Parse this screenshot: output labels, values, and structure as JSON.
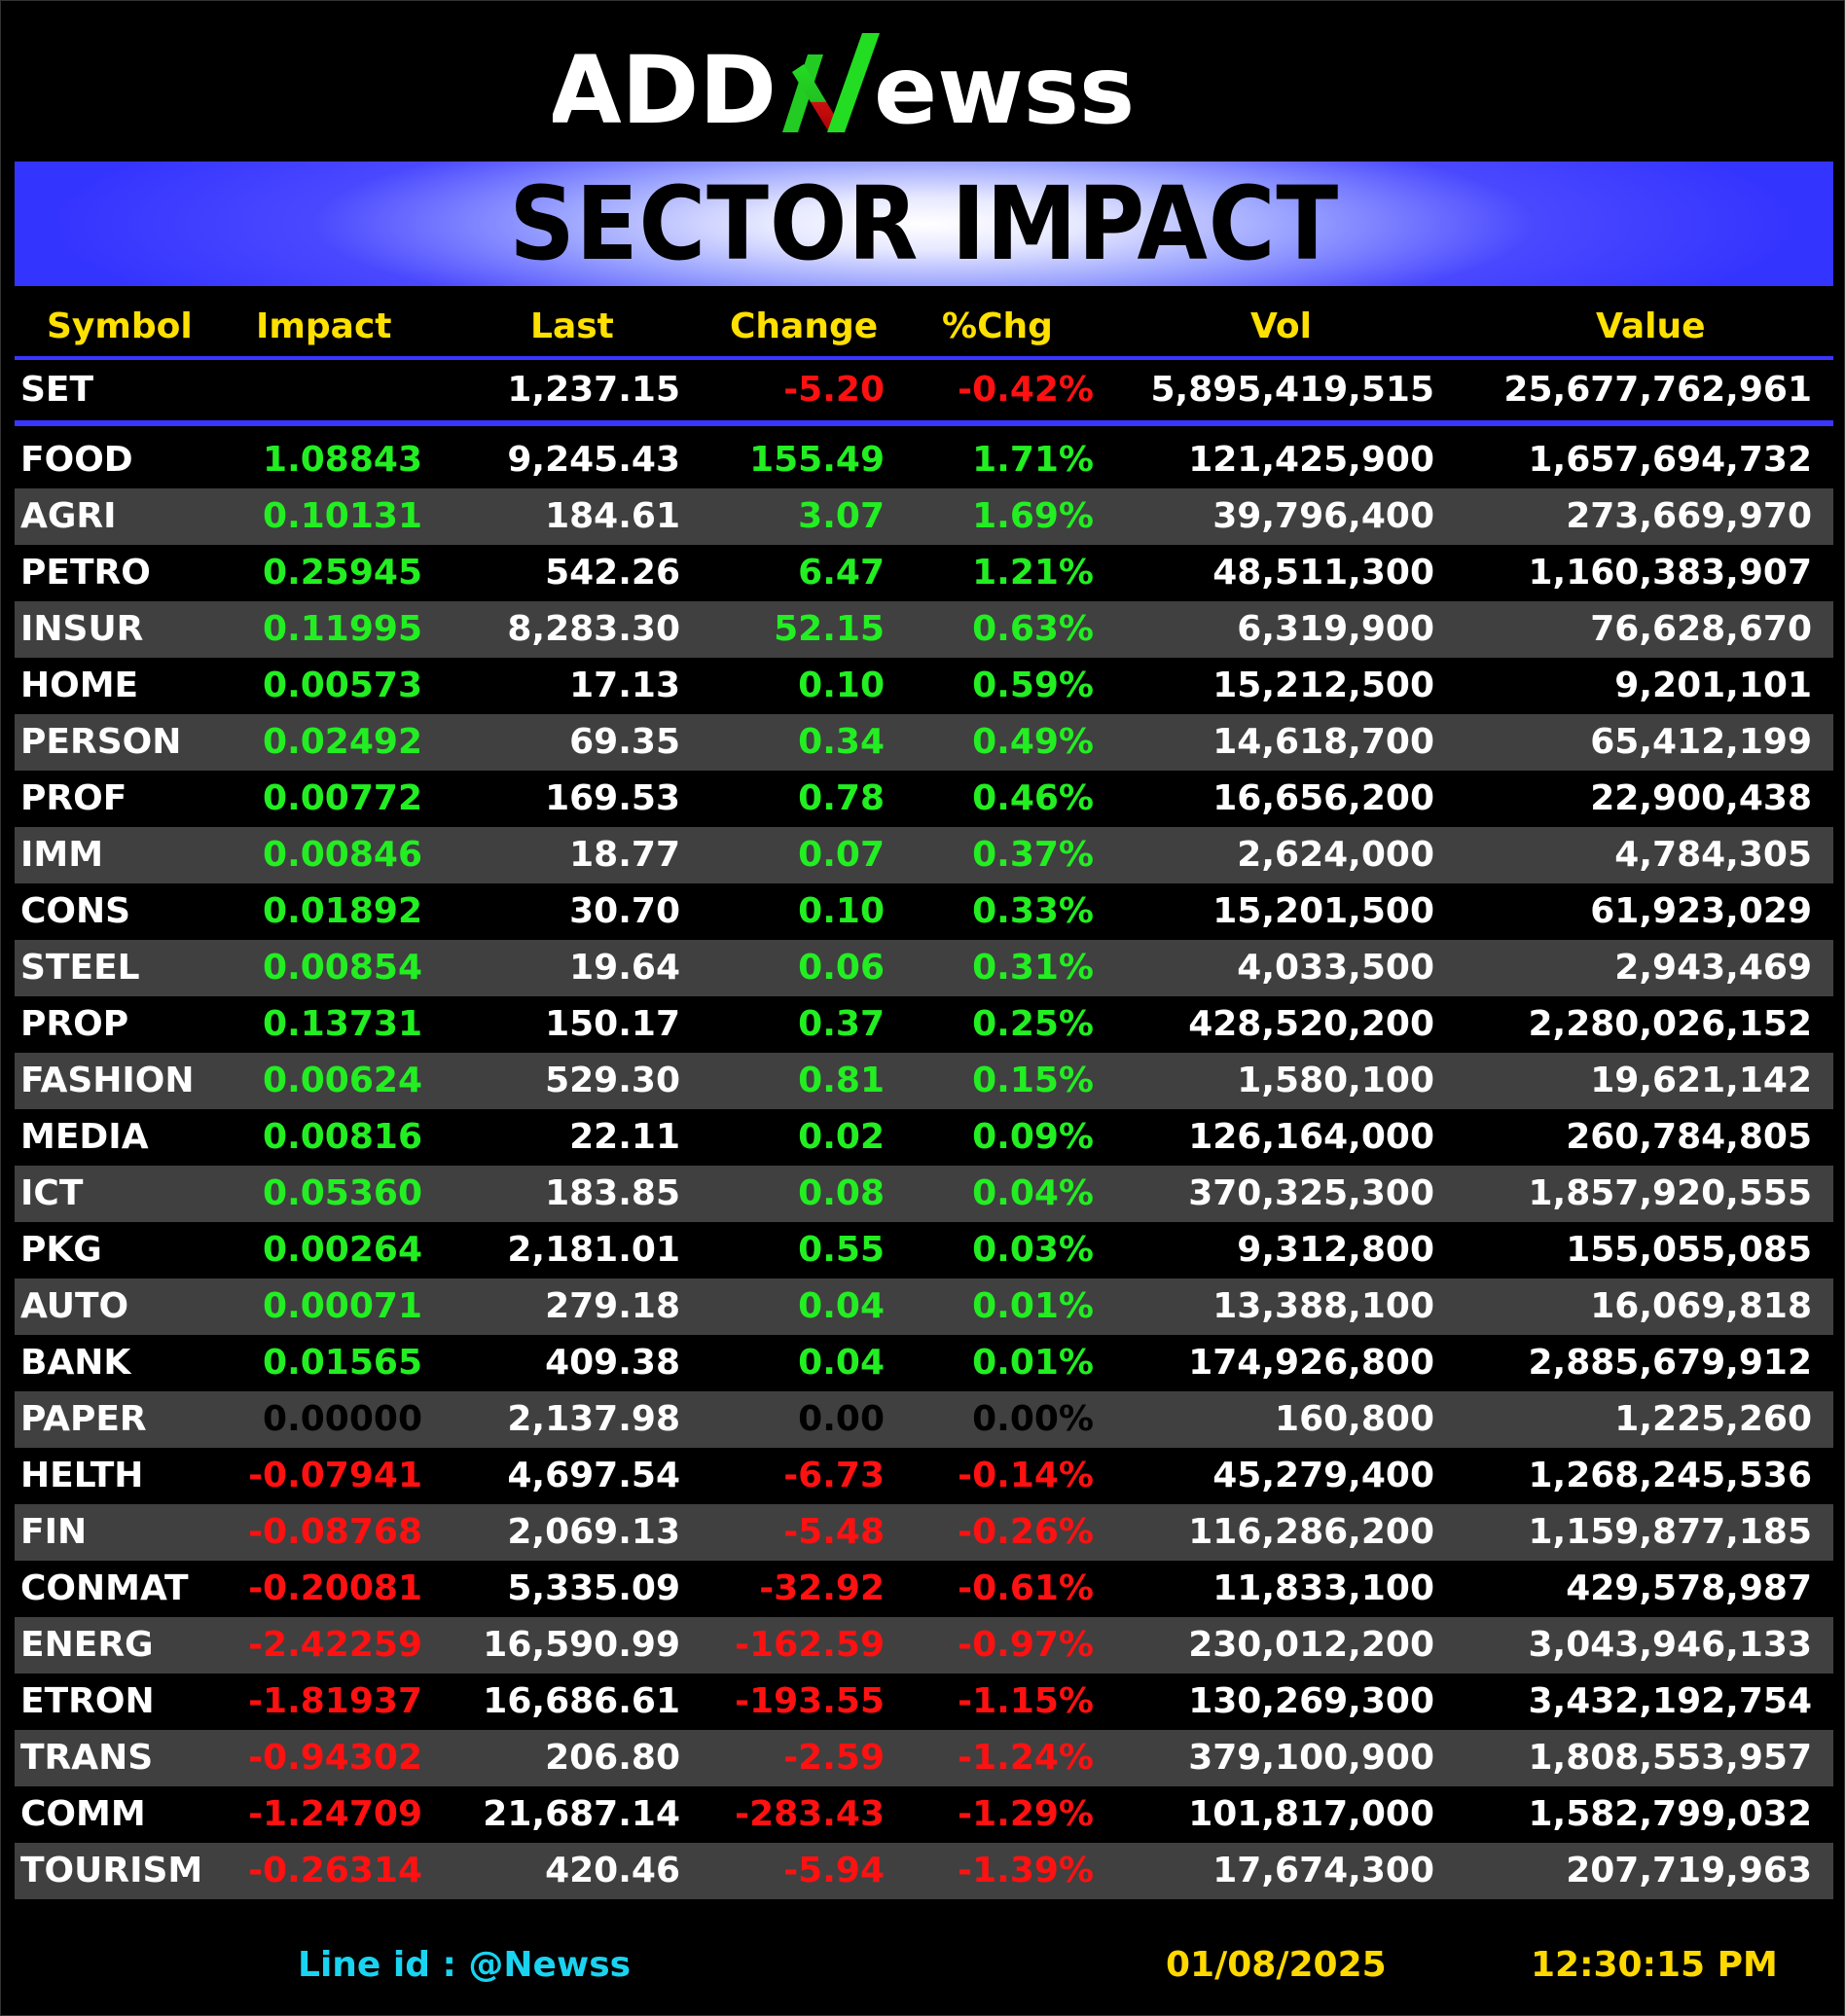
{
  "logo": {
    "part1": "ADD",
    "part2": "N",
    "part3": "ewss"
  },
  "title": "SECTOR IMPACT",
  "columns": {
    "symbol": "Symbol",
    "impact": "Impact",
    "last": "Last",
    "change": "Change",
    "pct": "%Chg",
    "vol": "Vol",
    "value": "Value"
  },
  "set": {
    "symbol": "SET",
    "impact": "",
    "last": "1,237.15",
    "change": "-5.20",
    "pct": "-0.42%",
    "vol": "5,895,419,515",
    "value": "25,677,762,961"
  },
  "rows": [
    {
      "symbol": "FOOD",
      "impact": "1.08843",
      "last": "9,245.43",
      "change": "155.49",
      "pct": "1.71%",
      "vol": "121,425,900",
      "value": "1,657,694,732",
      "dir": "pos"
    },
    {
      "symbol": "AGRI",
      "impact": "0.10131",
      "last": "184.61",
      "change": "3.07",
      "pct": "1.69%",
      "vol": "39,796,400",
      "value": "273,669,970",
      "dir": "pos"
    },
    {
      "symbol": "PETRO",
      "impact": "0.25945",
      "last": "542.26",
      "change": "6.47",
      "pct": "1.21%",
      "vol": "48,511,300",
      "value": "1,160,383,907",
      "dir": "pos"
    },
    {
      "symbol": "INSUR",
      "impact": "0.11995",
      "last": "8,283.30",
      "change": "52.15",
      "pct": "0.63%",
      "vol": "6,319,900",
      "value": "76,628,670",
      "dir": "pos"
    },
    {
      "symbol": "HOME",
      "impact": "0.00573",
      "last": "17.13",
      "change": "0.10",
      "pct": "0.59%",
      "vol": "15,212,500",
      "value": "9,201,101",
      "dir": "pos"
    },
    {
      "symbol": "PERSON",
      "impact": "0.02492",
      "last": "69.35",
      "change": "0.34",
      "pct": "0.49%",
      "vol": "14,618,700",
      "value": "65,412,199",
      "dir": "pos"
    },
    {
      "symbol": "PROF",
      "impact": "0.00772",
      "last": "169.53",
      "change": "0.78",
      "pct": "0.46%",
      "vol": "16,656,200",
      "value": "22,900,438",
      "dir": "pos"
    },
    {
      "symbol": "IMM",
      "impact": "0.00846",
      "last": "18.77",
      "change": "0.07",
      "pct": "0.37%",
      "vol": "2,624,000",
      "value": "4,784,305",
      "dir": "pos"
    },
    {
      "symbol": "CONS",
      "impact": "0.01892",
      "last": "30.70",
      "change": "0.10",
      "pct": "0.33%",
      "vol": "15,201,500",
      "value": "61,923,029",
      "dir": "pos"
    },
    {
      "symbol": "STEEL",
      "impact": "0.00854",
      "last": "19.64",
      "change": "0.06",
      "pct": "0.31%",
      "vol": "4,033,500",
      "value": "2,943,469",
      "dir": "pos"
    },
    {
      "symbol": "PROP",
      "impact": "0.13731",
      "last": "150.17",
      "change": "0.37",
      "pct": "0.25%",
      "vol": "428,520,200",
      "value": "2,280,026,152",
      "dir": "pos"
    },
    {
      "symbol": "FASHION",
      "impact": "0.00624",
      "last": "529.30",
      "change": "0.81",
      "pct": "0.15%",
      "vol": "1,580,100",
      "value": "19,621,142",
      "dir": "pos"
    },
    {
      "symbol": "MEDIA",
      "impact": "0.00816",
      "last": "22.11",
      "change": "0.02",
      "pct": "0.09%",
      "vol": "126,164,000",
      "value": "260,784,805",
      "dir": "pos"
    },
    {
      "symbol": "ICT",
      "impact": "0.05360",
      "last": "183.85",
      "change": "0.08",
      "pct": "0.04%",
      "vol": "370,325,300",
      "value": "1,857,920,555",
      "dir": "pos"
    },
    {
      "symbol": "PKG",
      "impact": "0.00264",
      "last": "2,181.01",
      "change": "0.55",
      "pct": "0.03%",
      "vol": "9,312,800",
      "value": "155,055,085",
      "dir": "pos"
    },
    {
      "symbol": "AUTO",
      "impact": "0.00071",
      "last": "279.18",
      "change": "0.04",
      "pct": "0.01%",
      "vol": "13,388,100",
      "value": "16,069,818",
      "dir": "pos"
    },
    {
      "symbol": "BANK",
      "impact": "0.01565",
      "last": "409.38",
      "change": "0.04",
      "pct": "0.01%",
      "vol": "174,926,800",
      "value": "2,885,679,912",
      "dir": "pos"
    },
    {
      "symbol": "PAPER",
      "impact": "0.00000",
      "last": "2,137.98",
      "change": "0.00",
      "pct": "0.00%",
      "vol": "160,800",
      "value": "1,225,260",
      "dir": "zero"
    },
    {
      "symbol": "HELTH",
      "impact": "-0.07941",
      "last": "4,697.54",
      "change": "-6.73",
      "pct": "-0.14%",
      "vol": "45,279,400",
      "value": "1,268,245,536",
      "dir": "neg"
    },
    {
      "symbol": "FIN",
      "impact": "-0.08768",
      "last": "2,069.13",
      "change": "-5.48",
      "pct": "-0.26%",
      "vol": "116,286,200",
      "value": "1,159,877,185",
      "dir": "neg"
    },
    {
      "symbol": "CONMAT",
      "impact": "-0.20081",
      "last": "5,335.09",
      "change": "-32.92",
      "pct": "-0.61%",
      "vol": "11,833,100",
      "value": "429,578,987",
      "dir": "neg"
    },
    {
      "symbol": "ENERG",
      "impact": "-2.42259",
      "last": "16,590.99",
      "change": "-162.59",
      "pct": "-0.97%",
      "vol": "230,012,200",
      "value": "3,043,946,133",
      "dir": "neg"
    },
    {
      "symbol": "ETRON",
      "impact": "-1.81937",
      "last": "16,686.61",
      "change": "-193.55",
      "pct": "-1.15%",
      "vol": "130,269,300",
      "value": "3,432,192,754",
      "dir": "neg"
    },
    {
      "symbol": "TRANS",
      "impact": "-0.94302",
      "last": "206.80",
      "change": "-2.59",
      "pct": "-1.24%",
      "vol": "379,100,900",
      "value": "1,808,553,957",
      "dir": "neg"
    },
    {
      "symbol": "COMM",
      "impact": "-1.24709",
      "last": "21,687.14",
      "change": "-283.43",
      "pct": "-1.29%",
      "vol": "101,817,000",
      "value": "1,582,799,032",
      "dir": "neg"
    },
    {
      "symbol": "TOURISM",
      "impact": "-0.26314",
      "last": "420.46",
      "change": "-5.94",
      "pct": "-1.39%",
      "vol": "17,674,300",
      "value": "207,719,963",
      "dir": "neg"
    }
  ],
  "footer": {
    "line_id": "Line id  : @Newss",
    "date": "01/08/2025",
    "time": "12:30:15 PM"
  },
  "colors": {
    "background": "#000000",
    "header_text": "#ffe000",
    "positive": "#22ee22",
    "negative": "#ff1111",
    "accent_blue": "#3a36ff",
    "alt_row": "#404040",
    "footer_line": "#19d3f0",
    "footer_datetime": "#ffd800"
  }
}
